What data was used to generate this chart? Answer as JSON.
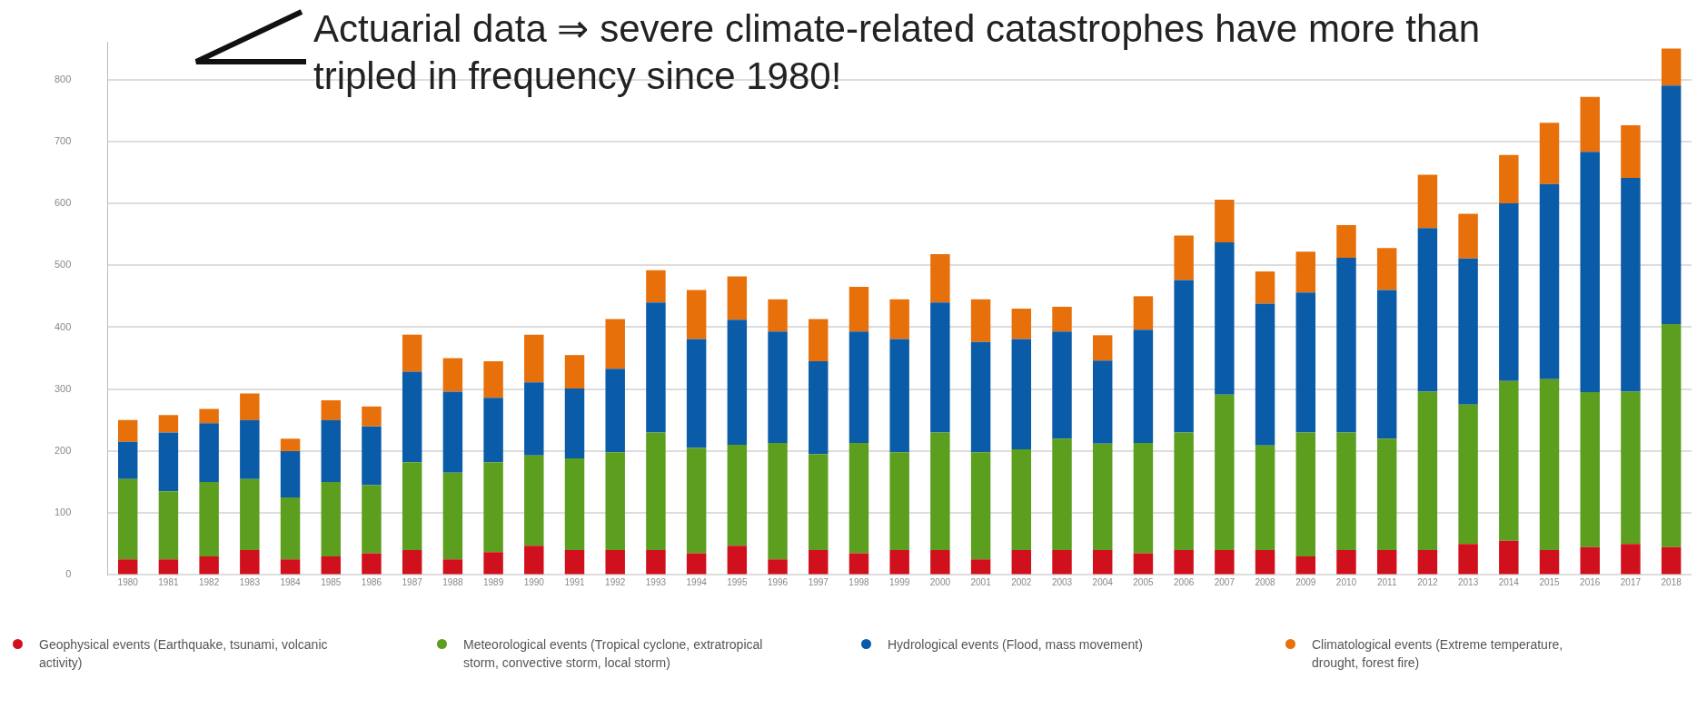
{
  "chart_data": {
    "type": "bar",
    "stacked": true,
    "categories": [
      "1980",
      "1981",
      "1982",
      "1983",
      "1984",
      "1985",
      "1986",
      "1987",
      "1988",
      "1989",
      "1990",
      "1991",
      "1992",
      "1993",
      "1994",
      "1995",
      "1996",
      "1997",
      "1998",
      "1999",
      "2000",
      "2001",
      "2002",
      "2003",
      "2004",
      "2005",
      "2006",
      "2007",
      "2008",
      "2009",
      "2010",
      "2011",
      "2012",
      "2013",
      "2014",
      "2015",
      "2016",
      "2017",
      "2018"
    ],
    "series": [
      {
        "name": "Geophysical events (Earthquake, tsunami, volcanic activity)",
        "color": "#d0101c",
        "values": [
          25,
          25,
          30,
          40,
          25,
          30,
          35,
          40,
          25,
          37,
          47,
          40,
          40,
          40,
          35,
          47,
          25,
          40,
          35,
          40,
          40,
          25,
          40,
          40,
          40,
          35,
          40,
          40,
          40,
          30,
          40,
          40,
          40,
          50,
          55,
          40,
          45,
          50,
          45
        ]
      },
      {
        "name": "Meteorological events (Tropical cyclone, extratropical storm, convective storm, local storm)",
        "color": "#5c9e1e",
        "values": [
          130,
          110,
          120,
          115,
          100,
          120,
          110,
          142,
          140,
          145,
          146,
          148,
          158,
          190,
          170,
          163,
          188,
          155,
          178,
          158,
          190,
          173,
          163,
          180,
          172,
          178,
          190,
          251,
          169,
          200,
          190,
          180,
          256,
          225,
          258,
          276,
          250,
          246,
          360
        ]
      },
      {
        "name": "Hydrological events (Flood, mass movement)",
        "color": "#0a5ca8",
        "values": [
          60,
          95,
          95,
          95,
          75,
          100,
          95,
          146,
          131,
          104,
          118,
          113,
          135,
          210,
          176,
          202,
          180,
          150,
          180,
          183,
          210,
          178,
          178,
          173,
          134,
          183,
          246,
          246,
          229,
          226,
          282,
          240,
          264,
          236,
          287,
          315,
          388,
          345,
          385
        ]
      },
      {
        "name": "Climatological events (Extreme temperature, drought, forest fire)",
        "color": "#e8700a",
        "values": [
          35,
          28,
          23,
          43,
          20,
          32,
          32,
          60,
          54,
          59,
          77,
          54,
          80,
          52,
          79,
          70,
          52,
          68,
          72,
          64,
          78,
          69,
          49,
          40,
          41,
          54,
          72,
          69,
          52,
          66,
          53,
          68,
          86,
          72,
          78,
          99,
          89,
          85,
          60
        ]
      }
    ],
    "ylim": [
      0,
      860
    ],
    "yticks": [
      0,
      100,
      200,
      300,
      400,
      500,
      600,
      700,
      800
    ],
    "grid": "y",
    "legend": "bottom",
    "annotations": [
      "Actuarial data ⇒ severe climate-related catastrophes have more than tripled in frequency since 1980!"
    ]
  }
}
